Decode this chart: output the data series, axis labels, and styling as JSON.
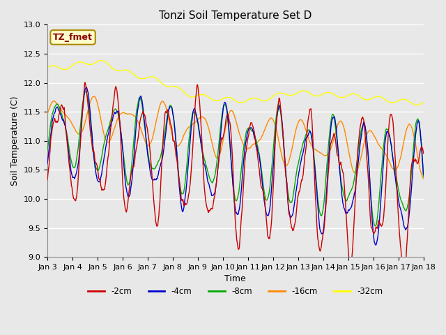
{
  "title": "Tonzi Soil Temperature Set D",
  "xlabel": "Time",
  "ylabel": "Soil Temperature (C)",
  "ylim": [
    9.0,
    13.0
  ],
  "start_day": 3,
  "end_day": 18,
  "xtick_labels": [
    "Jan 3",
    "Jan 4",
    "Jan 5",
    "Jan 6",
    "Jan 7",
    "Jan 8",
    "Jan 9",
    "Jan 10",
    "Jan 11",
    "Jan 12",
    "Jan 13",
    "Jan 14",
    "Jan 15",
    "Jan 16",
    "Jan 17",
    "Jan 18"
  ],
  "series_colors": {
    "-2cm": "#cc0000",
    "-4cm": "#0000cc",
    "-8cm": "#00aa00",
    "-16cm": "#ff8800",
    "-32cm": "#ffff00"
  },
  "legend_labels": [
    "-2cm",
    "-4cm",
    "-8cm",
    "-16cm",
    "-32cm"
  ],
  "annotation_text": "TZ_fmet",
  "annotation_bg": "#ffffcc",
  "annotation_border": "#aa8800",
  "plot_bg": "#e8e8e8",
  "grid_color": "#ffffff",
  "title_fontsize": 11,
  "label_fontsize": 9,
  "tick_fontsize": 8
}
